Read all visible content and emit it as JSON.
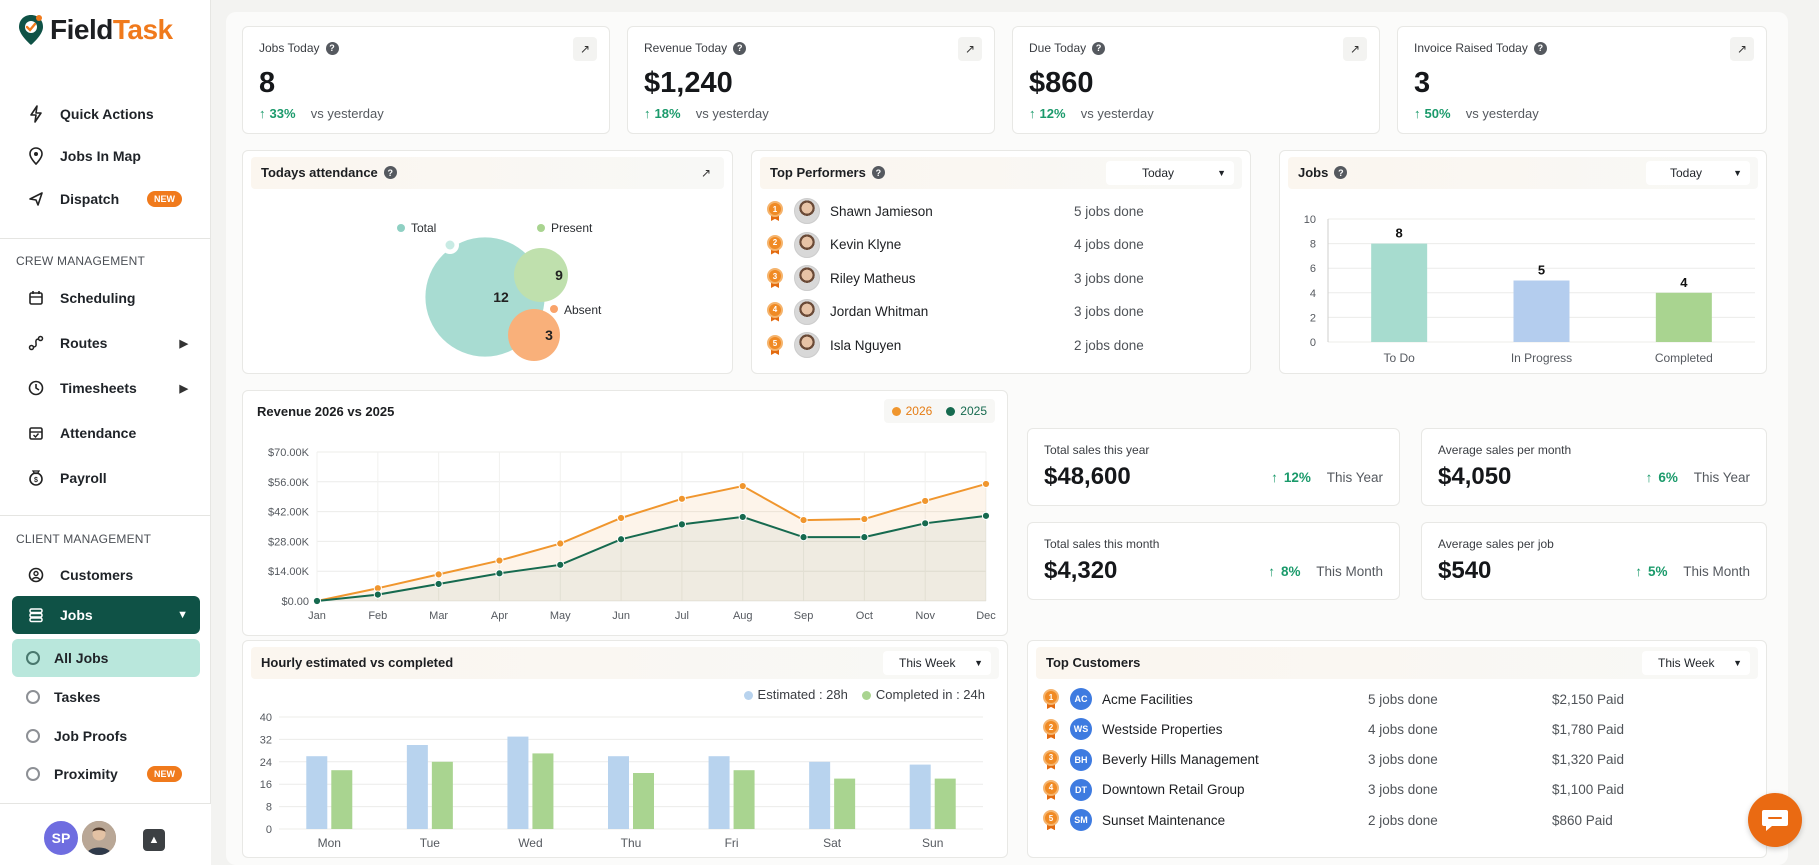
{
  "brand": {
    "name_part1": "Field",
    "name_part2": "Task"
  },
  "sidebar": {
    "top_items": [
      {
        "label": "Quick Actions"
      },
      {
        "label": "Jobs In Map"
      },
      {
        "label": "Dispatch",
        "badge": "NEW"
      }
    ],
    "crew_section": "CREW MANAGEMENT",
    "crew_items": [
      {
        "label": "Scheduling"
      },
      {
        "label": "Routes"
      },
      {
        "label": "Timesheets"
      },
      {
        "label": "Attendance"
      },
      {
        "label": "Payroll"
      }
    ],
    "client_section": "CLIENT MANAGEMENT",
    "client_items": [
      {
        "label": "Customers"
      },
      {
        "label": "Jobs"
      }
    ],
    "jobs_sub": [
      {
        "label": "All Jobs"
      },
      {
        "label": "Taskes"
      },
      {
        "label": "Job Proofs"
      },
      {
        "label": "Proximity",
        "badge": "NEW"
      }
    ],
    "user_initials": "SP"
  },
  "kpis": [
    {
      "title": "Jobs Today",
      "value": "8",
      "delta": "33%",
      "compare": "vs yesterday"
    },
    {
      "title": "Revenue Today",
      "value": "$1,240",
      "delta": "18%",
      "compare": "vs yesterday"
    },
    {
      "title": "Due Today",
      "value": "$860",
      "delta": "12%",
      "compare": "vs yesterday"
    },
    {
      "title": "Invoice Raised Today",
      "value": "3",
      "delta": "50%",
      "compare": "vs yesterday"
    }
  ],
  "attendance": {
    "title": "Todays attendance",
    "legend": {
      "total": "Total",
      "present": "Present",
      "absent": "Absent"
    },
    "total": 12,
    "present": 9,
    "absent": 3,
    "colors": {
      "total": "#a8dcd2",
      "present": "#bfe0ad",
      "absent": "#f9b07a"
    }
  },
  "top_performers": {
    "title": "Top Performers",
    "filter": "Today",
    "rows": [
      {
        "rank": "1",
        "name": "Shawn Jamieson",
        "jobs": "5 jobs done"
      },
      {
        "rank": "2",
        "name": "Kevin Klyne",
        "jobs": "4 jobs done"
      },
      {
        "rank": "3",
        "name": "Riley Matheus",
        "jobs": "3 jobs done"
      },
      {
        "rank": "4",
        "name": "Jordan Whitman",
        "jobs": "3 jobs done"
      },
      {
        "rank": "5",
        "name": "Isla Nguyen",
        "jobs": "2 jobs done"
      }
    ]
  },
  "jobs_chart": {
    "title": "Jobs",
    "filter": "Today",
    "chart_data": {
      "type": "bar",
      "categories": [
        "To Do",
        "In Progress",
        "Completed"
      ],
      "values": [
        8,
        5,
        4
      ],
      "colors": [
        "#a7dccf",
        "#b4cdee",
        "#a9d490"
      ],
      "ylim": [
        0,
        10
      ],
      "yticks": [
        0,
        2,
        4,
        6,
        8,
        10
      ],
      "grid": true
    }
  },
  "revenue_chart": {
    "title": "Revenue 2026 vs 2025",
    "chart_data": {
      "type": "line",
      "x": [
        "Jan",
        "Feb",
        "Mar",
        "Apr",
        "May",
        "Jun",
        "Jul",
        "Aug",
        "Sep",
        "Oct",
        "Nov",
        "Dec"
      ],
      "series": [
        {
          "name": "2026",
          "color": "#f0962e",
          "values": [
            0,
            6000,
            12500,
            19000,
            27000,
            39000,
            48000,
            54000,
            38000,
            38500,
            47000,
            55000
          ]
        },
        {
          "name": "2025",
          "color": "#166a4f",
          "values": [
            0,
            3000,
            8000,
            13000,
            17000,
            29000,
            36000,
            39500,
            30000,
            30000,
            36500,
            40000
          ]
        }
      ],
      "ylim": [
        0,
        70000
      ],
      "ytick_labels": [
        "$0.00",
        "$14.00K",
        "$28.00K",
        "$42.00K",
        "$56.00K",
        "$70.00K"
      ],
      "yticks": [
        0,
        14000,
        28000,
        42000,
        56000,
        70000
      ],
      "legend": "top-right",
      "grid": true
    }
  },
  "sales_stats": [
    {
      "label": "Total sales this year",
      "value": "$48,600",
      "delta": "12%",
      "period": "This Year"
    },
    {
      "label": "Average sales per month",
      "value": "$4,050",
      "delta": "6%",
      "period": "This Year"
    },
    {
      "label": "Total sales this month",
      "value": "$4,320",
      "delta": "8%",
      "period": "This Month"
    },
    {
      "label": "Average sales per job",
      "value": "$540",
      "delta": "5%",
      "period": "This Month"
    }
  ],
  "hourly_chart": {
    "title": "Hourly estimated vs completed",
    "filter": "This Week",
    "legend_estimated": "Estimated : 28h",
    "legend_completed": "Completed in : 24h",
    "chart_data": {
      "type": "bar",
      "categories": [
        "Mon",
        "Tue",
        "Wed",
        "Thu",
        "Fri",
        "Sat",
        "Sun"
      ],
      "series": [
        {
          "name": "Estimated",
          "color": "#b8d3ee",
          "values": [
            26,
            30,
            33,
            26,
            26,
            24,
            23
          ]
        },
        {
          "name": "Completed",
          "color": "#a9d490",
          "values": [
            21,
            24,
            27,
            20,
            21,
            18,
            18
          ]
        }
      ],
      "ylim": [
        0,
        40
      ],
      "yticks": [
        0,
        8,
        16,
        24,
        32,
        40
      ],
      "grid": true
    }
  },
  "top_customers": {
    "title": "Top Customers",
    "filter": "This Week",
    "rows": [
      {
        "rank": "1",
        "initials": "AC",
        "name": "Acme Facilities",
        "jobs": "5 jobs done",
        "paid": "$2,150 Paid"
      },
      {
        "rank": "2",
        "initials": "WS",
        "name": "Westside Properties",
        "jobs": "4 jobs done",
        "paid": "$1,780 Paid"
      },
      {
        "rank": "3",
        "initials": "BH",
        "name": "Beverly Hills Management",
        "jobs": "3 jobs done",
        "paid": "$1,320 Paid"
      },
      {
        "rank": "4",
        "initials": "DT",
        "name": "Downtown Retail Group",
        "jobs": "3 jobs done",
        "paid": "$1,100 Paid"
      },
      {
        "rank": "5",
        "initials": "SM",
        "name": "Sunset Maintenance",
        "jobs": "2 jobs done",
        "paid": "$860 Paid"
      }
    ]
  }
}
